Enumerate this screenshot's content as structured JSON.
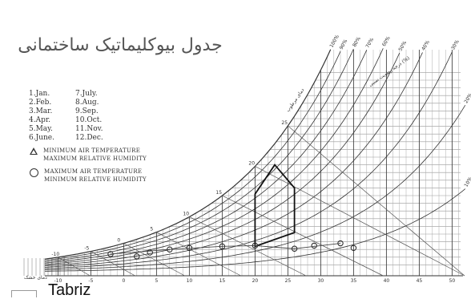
{
  "title": "جدول بیوکلیماتیک ساختمانی",
  "city": "Tabriz",
  "months_legend": [
    "1.Jan.",
    "7.July.",
    "2.Feb.",
    "8.Aug.",
    "3.Mar.",
    "9.Sep.",
    "4.Apr.",
    "10.Oct.",
    "5.May.",
    "11.Nov.",
    "6.June.",
    "12.Dec."
  ],
  "symbols": {
    "triangle": [
      "MINIMUM AIR TEMPERATURE",
      "MAXIMUM RELATIVE HUMIDITY"
    ],
    "circle": [
      "MAXIMUM AIR TEMPERATURE",
      "MINIMUM RELATIVE HUMIDITY"
    ]
  },
  "x_axis_ticks": [
    "-10",
    "-5",
    "0",
    "5",
    "10",
    "15",
    "20",
    "25",
    "30",
    "35",
    "40",
    "45",
    "50"
  ],
  "x_axis_label": "دمای خشک",
  "rh_labels": [
    "100%",
    "90%",
    "80%",
    "70%",
    "60%",
    "50%",
    "40%",
    "30%",
    "20%",
    "10%"
  ],
  "rh_axis_label": "درجه رطوبت نسبی (%)",
  "wb_labels": [
    "25",
    "20",
    "15",
    "10",
    "5",
    "0",
    "-5",
    "-10"
  ],
  "wb_axis_label": "دمای مرطوب",
  "colors": {
    "line": "#333333",
    "comfort_zone": "#111111",
    "grid": "#666666"
  }
}
